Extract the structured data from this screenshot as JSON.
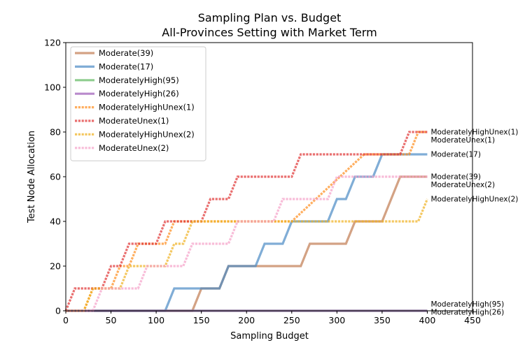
{
  "chart_data": {
    "type": "line",
    "title": "Sampling Plan vs. Budget",
    "subtitle": "All-Provinces Setting with Market Term",
    "xlabel": "Sampling Budget",
    "ylabel": "Test Node Allocation",
    "xlim": [
      0,
      450
    ],
    "ylim": [
      0,
      120
    ],
    "xticks": [
      0,
      50,
      100,
      150,
      200,
      250,
      300,
      350,
      400,
      450
    ],
    "yticks": [
      0,
      20,
      40,
      60,
      80,
      100,
      120
    ],
    "grid": false,
    "legend_position": "upper-left",
    "series": [
      {
        "name": "Moderate(39)",
        "style": "solid",
        "color": "#c07a50",
        "end_label": "Moderate(39)",
        "points": [
          [
            0,
            0
          ],
          [
            140,
            0
          ],
          [
            150,
            10
          ],
          [
            170,
            10
          ],
          [
            180,
            20
          ],
          [
            250,
            20
          ],
          [
            260,
            20
          ],
          [
            270,
            30
          ],
          [
            300,
            30
          ],
          [
            310,
            30
          ],
          [
            320,
            40
          ],
          [
            340,
            40
          ],
          [
            350,
            40
          ],
          [
            370,
            60
          ],
          [
            400,
            60
          ]
        ]
      },
      {
        "name": "Moderate(17)",
        "style": "solid",
        "color": "#4a8ac4",
        "end_label": "Moderate(17)",
        "points": [
          [
            0,
            0
          ],
          [
            110,
            0
          ],
          [
            120,
            10
          ],
          [
            160,
            10
          ],
          [
            170,
            10
          ],
          [
            180,
            20
          ],
          [
            200,
            20
          ],
          [
            210,
            20
          ],
          [
            220,
            30
          ],
          [
            230,
            30
          ],
          [
            240,
            30
          ],
          [
            250,
            40
          ],
          [
            280,
            40
          ],
          [
            290,
            40
          ],
          [
            300,
            50
          ],
          [
            310,
            50
          ],
          [
            320,
            60
          ],
          [
            330,
            60
          ],
          [
            340,
            60
          ],
          [
            350,
            70
          ],
          [
            400,
            70
          ]
        ]
      },
      {
        "name": "ModeratelyHigh(95)",
        "style": "solid",
        "color": "#5fb85f",
        "end_label": "ModeratelyHigh(95)",
        "points": [
          [
            0,
            0
          ],
          [
            400,
            0
          ]
        ]
      },
      {
        "name": "ModeratelyHigh(26)",
        "style": "solid",
        "color": "#9b59b6",
        "end_label": "ModeratelyHigh(26)",
        "points": [
          [
            0,
            0
          ],
          [
            400,
            0
          ]
        ]
      },
      {
        "name": "ModeratelyHighUnex(1)",
        "style": "dotted",
        "color": "#ff8c1a",
        "end_label": "ModeratelyHighUnex(1)",
        "points": [
          [
            0,
            0
          ],
          [
            20,
            0
          ],
          [
            30,
            10
          ],
          [
            50,
            10
          ],
          [
            60,
            20
          ],
          [
            70,
            20
          ],
          [
            80,
            30
          ],
          [
            110,
            30
          ],
          [
            120,
            40
          ],
          [
            130,
            40
          ],
          [
            140,
            40
          ],
          [
            150,
            40
          ],
          [
            160,
            40
          ],
          [
            250,
            40
          ],
          [
            330,
            70
          ],
          [
            380,
            70
          ],
          [
            390,
            80
          ],
          [
            400,
            80
          ]
        ]
      },
      {
        "name": "ModerateUnex(1)",
        "style": "dotted",
        "color": "#e03030",
        "end_label": "ModerateUnex(1)",
        "points": [
          [
            0,
            0
          ],
          [
            10,
            10
          ],
          [
            40,
            10
          ],
          [
            50,
            20
          ],
          [
            60,
            20
          ],
          [
            70,
            30
          ],
          [
            100,
            30
          ],
          [
            110,
            40
          ],
          [
            150,
            40
          ],
          [
            160,
            50
          ],
          [
            180,
            50
          ],
          [
            190,
            60
          ],
          [
            250,
            60
          ],
          [
            260,
            70
          ],
          [
            370,
            70
          ],
          [
            380,
            80
          ],
          [
            400,
            80
          ]
        ]
      },
      {
        "name": "ModeratelyHighUnex(2)",
        "style": "dotted",
        "color": "#f0b020",
        "end_label": "ModeratelyHighUnex(2)",
        "points": [
          [
            0,
            0
          ],
          [
            20,
            0
          ],
          [
            30,
            10
          ],
          [
            60,
            10
          ],
          [
            70,
            20
          ],
          [
            110,
            20
          ],
          [
            120,
            30
          ],
          [
            130,
            30
          ],
          [
            140,
            40
          ],
          [
            290,
            40
          ],
          [
            390,
            40
          ],
          [
            400,
            50
          ]
        ]
      },
      {
        "name": "ModerateUnex(2)",
        "style": "dotted",
        "color": "#f5a0c8",
        "end_label": "ModerateUnex(2)",
        "points": [
          [
            0,
            0
          ],
          [
            30,
            0
          ],
          [
            40,
            10
          ],
          [
            80,
            10
          ],
          [
            90,
            20
          ],
          [
            130,
            20
          ],
          [
            140,
            30
          ],
          [
            180,
            30
          ],
          [
            190,
            40
          ],
          [
            230,
            40
          ],
          [
            240,
            50
          ],
          [
            290,
            50
          ],
          [
            300,
            60
          ],
          [
            400,
            60
          ]
        ]
      }
    ]
  }
}
